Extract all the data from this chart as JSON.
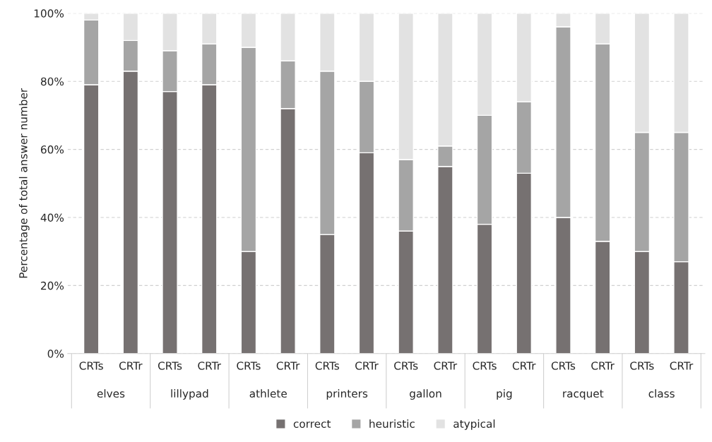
{
  "chart_data": {
    "type": "bar",
    "stacked": true,
    "ylabel": "Percentage of total answer number",
    "categories": [
      "CRTs",
      "CRTr",
      "CRTs",
      "CRTr",
      "CRTs",
      "CRTr",
      "CRTs",
      "CRTr",
      "CRTs",
      "CRTr",
      "CRTs",
      "CRTr",
      "CRTs",
      "CRTr",
      "CRTs",
      "CRTr"
    ],
    "annotations": [
      "elves",
      "lillypad",
      "athlete",
      "printers",
      "gallon",
      "pig",
      "racquet",
      "class"
    ],
    "series": [
      {
        "name": "correct",
        "color": "#767171",
        "values": [
          79,
          83,
          77,
          79,
          30,
          72,
          35,
          59,
          36,
          55,
          38,
          53,
          40,
          33,
          30,
          27
        ]
      },
      {
        "name": "heuristic",
        "color": "#a5a5a5",
        "values": [
          19,
          9,
          12,
          12,
          60,
          14,
          48,
          21,
          21,
          6,
          32,
          21,
          56,
          58,
          35,
          38
        ]
      },
      {
        "name": "atypical",
        "color": "#e2e2e2",
        "values": [
          2,
          8,
          11,
          9,
          10,
          14,
          17,
          20,
          43,
          39,
          30,
          26,
          4,
          9,
          35,
          35
        ]
      }
    ],
    "ylim": [
      0,
      100
    ],
    "yticks": [
      {
        "value": 0,
        "label": "0%"
      },
      {
        "value": 20,
        "label": "20%"
      },
      {
        "value": 40,
        "label": "40%"
      },
      {
        "value": 60,
        "label": "60%"
      },
      {
        "value": 80,
        "label": "80%"
      },
      {
        "value": 100,
        "label": "100%"
      }
    ],
    "grid": "y",
    "legend": "bottom"
  }
}
